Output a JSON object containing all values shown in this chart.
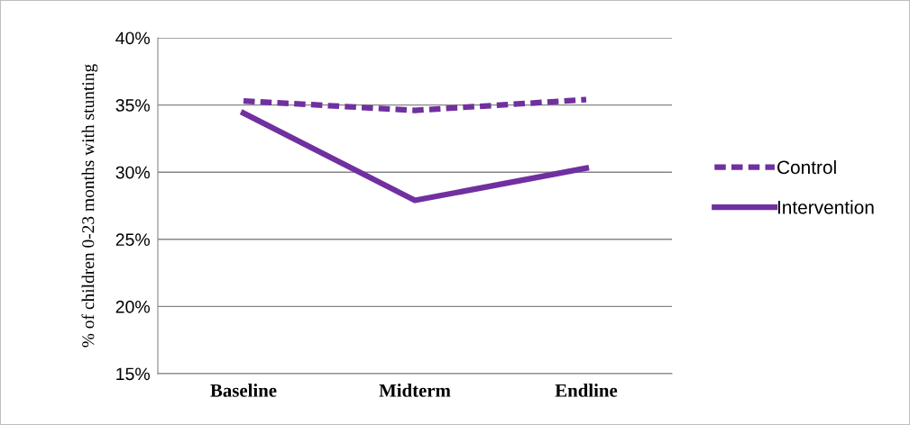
{
  "chart_data": {
    "type": "line",
    "ylabel": "% of children 0-23 months with stunting",
    "categories": [
      "Baseline",
      "Midterm",
      "Endline"
    ],
    "series": [
      {
        "name": "Control",
        "color": "#7030a0",
        "values": [
          35.3,
          34.6,
          35.4
        ],
        "line_style": "dashed"
      },
      {
        "name": "Intervention",
        "color": "#7030a0",
        "values": [
          34.4,
          27.9,
          30.3
        ],
        "line_style": "solid"
      }
    ],
    "ylim": [
      15,
      40
    ],
    "yticks": [
      {
        "value": 15,
        "label": "15%"
      },
      {
        "value": 20,
        "label": "20%"
      },
      {
        "value": 25,
        "label": "25%"
      },
      {
        "value": 30,
        "label": "30%"
      },
      {
        "value": 35,
        "label": "35%"
      },
      {
        "value": 40,
        "label": "40%"
      }
    ],
    "grid": "y",
    "legend": "right",
    "marker": "none"
  }
}
